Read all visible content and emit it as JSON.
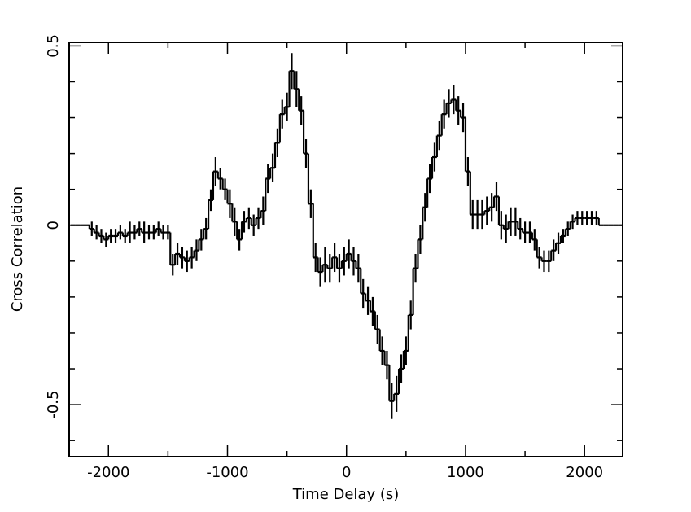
{
  "chart_data": {
    "type": "step",
    "x_label": "Time Delay (s)",
    "y_label": "Cross Correlation",
    "xlim": [
      -2330,
      2320
    ],
    "ylim": [
      -0.645,
      0.51
    ],
    "xticks": [
      -2000,
      -1000,
      0,
      1000,
      2000
    ],
    "xminorticks": [
      -1500,
      -500,
      500,
      1500
    ],
    "yticks": [
      -0.5,
      0,
      0.5
    ],
    "yminorticks": [
      -0.6,
      -0.4,
      -0.3,
      -0.2,
      -0.1,
      0.1,
      0.2,
      0.3,
      0.4
    ],
    "color": "#000000",
    "x": [
      -2300,
      -2260,
      -2220,
      -2180,
      -2140,
      -2100,
      -2060,
      -2020,
      -1980,
      -1940,
      -1900,
      -1860,
      -1820,
      -1780,
      -1740,
      -1700,
      -1660,
      -1620,
      -1580,
      -1540,
      -1500,
      -1460,
      -1420,
      -1380,
      -1340,
      -1300,
      -1260,
      -1220,
      -1180,
      -1140,
      -1100,
      -1060,
      -1020,
      -980,
      -940,
      -900,
      -860,
      -820,
      -780,
      -740,
      -700,
      -660,
      -620,
      -580,
      -540,
      -500,
      -460,
      -420,
      -380,
      -340,
      -300,
      -260,
      -220,
      -180,
      -140,
      -100,
      -60,
      -20,
      20,
      60,
      100,
      140,
      180,
      220,
      260,
      300,
      340,
      380,
      420,
      460,
      500,
      540,
      580,
      620,
      660,
      700,
      740,
      780,
      820,
      860,
      900,
      940,
      980,
      1020,
      1060,
      1100,
      1140,
      1180,
      1220,
      1260,
      1300,
      1340,
      1380,
      1420,
      1460,
      1500,
      1540,
      1580,
      1620,
      1660,
      1700,
      1740,
      1780,
      1820,
      1860,
      1900,
      1940,
      1980,
      2020,
      2060,
      2100,
      2140,
      2180,
      2220,
      2260,
      2300
    ],
    "values": [
      0,
      0,
      0,
      0,
      -0.01,
      -0.02,
      -0.03,
      -0.04,
      -0.03,
      -0.03,
      -0.02,
      -0.03,
      -0.02,
      -0.02,
      -0.01,
      -0.02,
      -0.02,
      -0.02,
      -0.01,
      -0.02,
      -0.02,
      -0.11,
      -0.08,
      -0.09,
      -0.1,
      -0.09,
      -0.07,
      -0.04,
      -0.01,
      0.07,
      0.15,
      0.13,
      0.1,
      0.06,
      0.01,
      -0.04,
      0.01,
      0.02,
      0,
      0.02,
      0.04,
      0.13,
      0.16,
      0.23,
      0.31,
      0.33,
      0.43,
      0.38,
      0.32,
      0.2,
      0.06,
      -0.09,
      -0.13,
      -0.11,
      -0.12,
      -0.09,
      -0.12,
      -0.1,
      -0.08,
      -0.1,
      -0.12,
      -0.19,
      -0.21,
      -0.24,
      -0.29,
      -0.35,
      -0.39,
      -0.49,
      -0.47,
      -0.4,
      -0.35,
      -0.25,
      -0.12,
      -0.04,
      0.05,
      0.13,
      0.19,
      0.25,
      0.31,
      0.34,
      0.35,
      0.32,
      0.3,
      0.15,
      0.03,
      0.03,
      0.03,
      0.04,
      0.05,
      0.08,
      0,
      -0.01,
      0.01,
      0.01,
      -0.01,
      -0.02,
      -0.02,
      -0.04,
      -0.09,
      -0.1,
      -0.1,
      -0.07,
      -0.05,
      -0.03,
      -0.01,
      0.01,
      0.02,
      0.02,
      0.02,
      0.02,
      0.02,
      0,
      0,
      0,
      0,
      0
    ],
    "errors": [
      0,
      0,
      0,
      0,
      0.02,
      0.02,
      0.02,
      0.02,
      0.02,
      0.02,
      0.02,
      0.02,
      0.03,
      0.02,
      0.02,
      0.03,
      0.02,
      0.02,
      0.02,
      0.02,
      0.02,
      0.03,
      0.03,
      0.03,
      0.03,
      0.03,
      0.03,
      0.03,
      0.03,
      0.03,
      0.04,
      0.03,
      0.03,
      0.04,
      0.04,
      0.03,
      0.03,
      0.03,
      0.03,
      0.03,
      0.04,
      0.04,
      0.04,
      0.04,
      0.04,
      0.04,
      0.05,
      0.05,
      0.04,
      0.04,
      0.04,
      0.04,
      0.04,
      0.05,
      0.04,
      0.04,
      0.04,
      0.04,
      0.04,
      0.04,
      0.04,
      0.04,
      0.04,
      0.04,
      0.04,
      0.04,
      0.04,
      0.05,
      0.05,
      0.04,
      0.04,
      0.04,
      0.04,
      0.04,
      0.04,
      0.04,
      0.04,
      0.04,
      0.04,
      0.04,
      0.04,
      0.04,
      0.04,
      0.04,
      0.04,
      0.04,
      0.04,
      0.04,
      0.04,
      0.04,
      0.04,
      0.04,
      0.04,
      0.04,
      0.03,
      0.03,
      0.03,
      0.03,
      0.03,
      0.03,
      0.03,
      0.03,
      0.03,
      0.02,
      0.02,
      0.02,
      0.02,
      0.02,
      0.02,
      0.02,
      0.02,
      0,
      0,
      0,
      0,
      0
    ]
  }
}
